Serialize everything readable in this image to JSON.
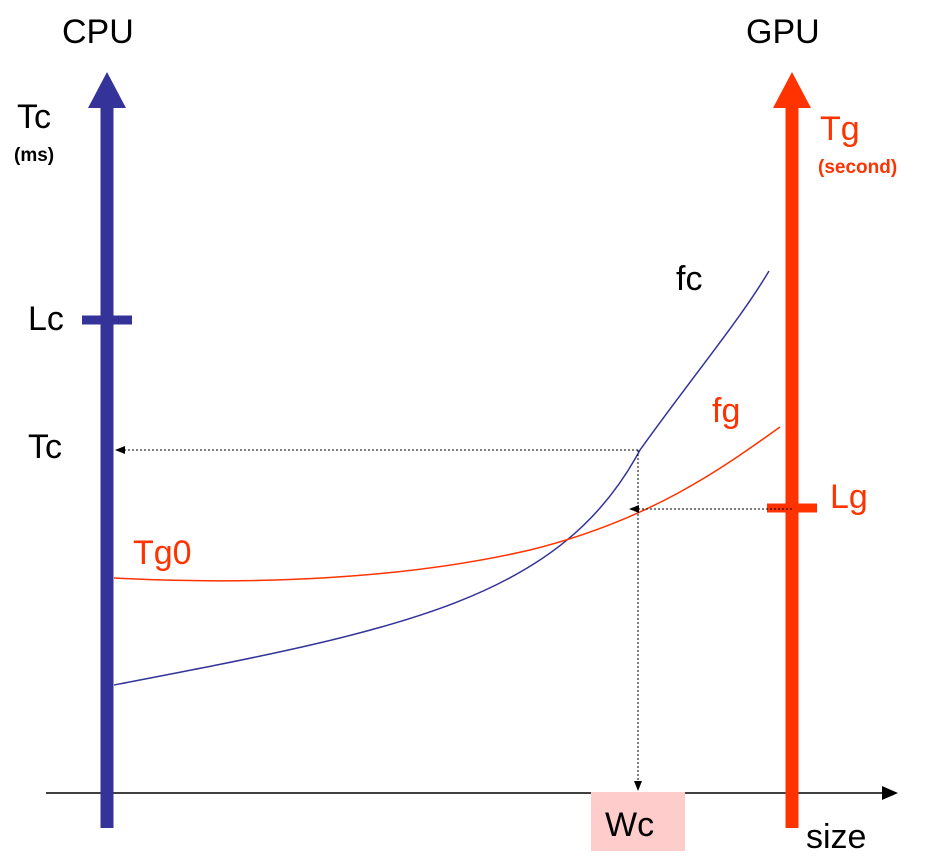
{
  "colors": {
    "cpu": "#333399",
    "gpu": "#ff3300",
    "black": "#000000",
    "wc_box": "#ffcccc"
  },
  "labels": {
    "cpu_title": "CPU",
    "gpu_title": "GPU",
    "tc_axis": "Tc",
    "tc_unit": "(ms)",
    "tg_axis": "Tg",
    "tg_unit": "(second)",
    "lc": "Lc",
    "tc_mark": "Tc",
    "fc": "fc",
    "fg": "fg",
    "lg": "Lg",
    "tg0": "Tg0",
    "wc": "Wc",
    "size": "size"
  }
}
